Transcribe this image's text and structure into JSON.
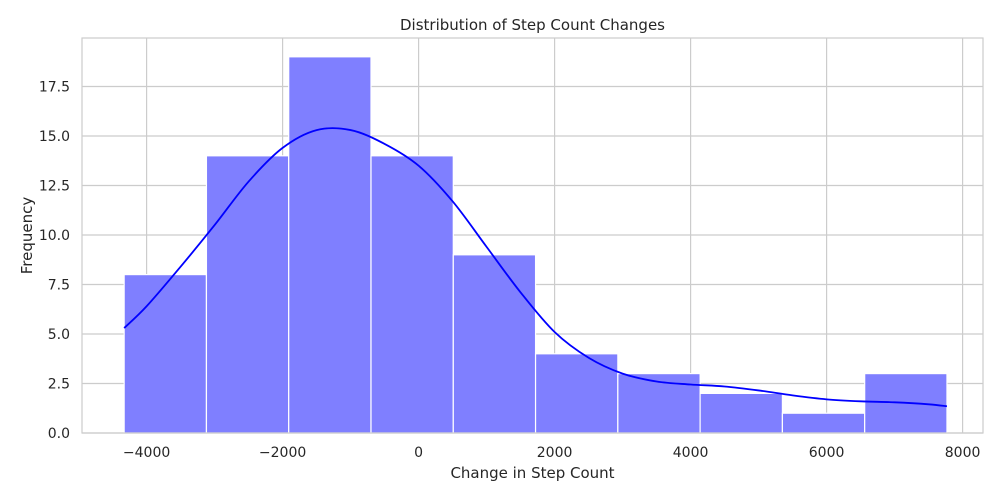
{
  "chart_data": {
    "type": "bar",
    "title": "Distribution of Step Count Changes",
    "xlabel": "Change in Step Count",
    "ylabel": "Frequency",
    "xlim": [
      -4950,
      8300
    ],
    "ylim": [
      0,
      19.95
    ],
    "xticks": [
      -4000,
      -2000,
      0,
      2000,
      4000,
      6000,
      8000
    ],
    "xtick_labels": [
      "−4000",
      "−2000",
      "0",
      "2000",
      "4000",
      "6000",
      "8000"
    ],
    "yticks": [
      0,
      2.5,
      5,
      7.5,
      10,
      12.5,
      15,
      17.5
    ],
    "ytick_labels": [
      "0.0",
      "2.5",
      "5.0",
      "7.5",
      "10.0",
      "12.5",
      "15.0",
      "17.5"
    ],
    "bins": [
      {
        "x0": -4330,
        "x1": -3120,
        "count": 8
      },
      {
        "x0": -3120,
        "x1": -1910,
        "count": 14
      },
      {
        "x0": -1910,
        "x1": -700,
        "count": 19
      },
      {
        "x0": -700,
        "x1": 510,
        "count": 14
      },
      {
        "x0": 510,
        "x1": 1720,
        "count": 9
      },
      {
        "x0": 1720,
        "x1": 2930,
        "count": 4
      },
      {
        "x0": 2930,
        "x1": 4140,
        "count": 3
      },
      {
        "x0": 4140,
        "x1": 5350,
        "count": 2
      },
      {
        "x0": 5350,
        "x1": 6560,
        "count": 1
      },
      {
        "x0": 6560,
        "x1": 7770,
        "count": 3
      }
    ],
    "kde": {
      "x": [
        -4330,
        -4000,
        -3500,
        -3000,
        -2500,
        -2000,
        -1500,
        -1000,
        -500,
        0,
        500,
        1000,
        1500,
        2000,
        2500,
        3000,
        3500,
        4000,
        4500,
        5000,
        5500,
        6000,
        6500,
        7000,
        7500,
        7770
      ],
      "y": [
        5.3,
        6.4,
        8.4,
        10.5,
        12.7,
        14.4,
        15.3,
        15.3,
        14.6,
        13.5,
        11.7,
        9.4,
        7.1,
        5.1,
        3.8,
        3.0,
        2.6,
        2.45,
        2.35,
        2.15,
        1.9,
        1.7,
        1.6,
        1.55,
        1.45,
        1.35
      ]
    },
    "bar_color": "#7f7fff",
    "kde_color": "#0000ff",
    "grid": true,
    "legend": false
  }
}
